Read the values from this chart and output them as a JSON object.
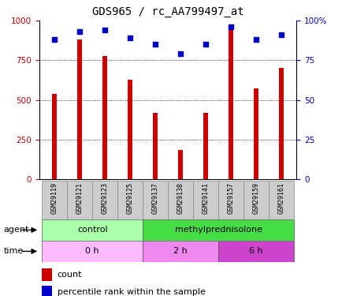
{
  "title": "GDS965 / rc_AA799497_at",
  "samples": [
    "GSM29119",
    "GSM29121",
    "GSM29123",
    "GSM29125",
    "GSM29137",
    "GSM29138",
    "GSM29141",
    "GSM29157",
    "GSM29159",
    "GSM29161"
  ],
  "counts": [
    540,
    880,
    775,
    625,
    420,
    185,
    420,
    970,
    575,
    700
  ],
  "percentiles": [
    88,
    93,
    94,
    89,
    85,
    79,
    85,
    96,
    88,
    91
  ],
  "ylim_left": [
    0,
    1000
  ],
  "ylim_right": [
    0,
    100
  ],
  "yticks_left": [
    0,
    250,
    500,
    750,
    1000
  ],
  "yticks_right": [
    0,
    25,
    50,
    75,
    100
  ],
  "bar_color": "#cc0000",
  "dot_color": "#0000cc",
  "agent_groups": [
    {
      "label": "control",
      "start": 0,
      "end": 4,
      "color": "#aaffaa"
    },
    {
      "label": "methylprednisolone",
      "start": 4,
      "end": 10,
      "color": "#44dd44"
    }
  ],
  "time_groups": [
    {
      "label": "0 h",
      "start": 0,
      "end": 4,
      "color": "#ffbbff"
    },
    {
      "label": "2 h",
      "start": 4,
      "end": 7,
      "color": "#ee88ee"
    },
    {
      "label": "6 h",
      "start": 7,
      "end": 10,
      "color": "#cc44cc"
    }
  ],
  "legend_count_color": "#cc0000",
  "legend_dot_color": "#0000cc",
  "tick_label_color_left": "#cc0000",
  "tick_label_color_right": "#0000cc"
}
